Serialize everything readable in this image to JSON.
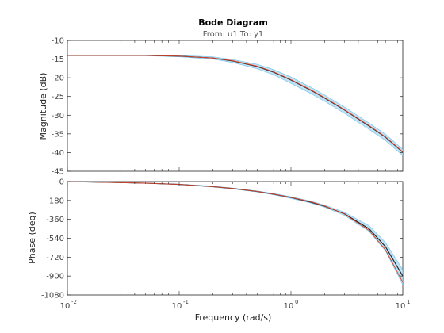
{
  "colors": {
    "band": "#a9d8f0",
    "band_line": "#5bb6e6",
    "estimate": "#1f1f1f",
    "true_response": "#d9442a",
    "axes": "#262626"
  },
  "chart_data": [
    {
      "type": "line",
      "panel": "magnitude",
      "title": "Bode Diagram",
      "subtitle": "From: u1  To: y1",
      "xlabel": "",
      "ylabel": "Magnitude (dB)",
      "xscale": "log",
      "xlim": [
        0.01,
        10
      ],
      "ylim": [
        -45,
        -10
      ],
      "yticks": [
        -10,
        -15,
        -20,
        -25,
        -30,
        -35,
        -40,
        -45
      ],
      "grid": false,
      "x": [
        0.01,
        0.02,
        0.05,
        0.1,
        0.2,
        0.3,
        0.5,
        0.7,
        1,
        1.5,
        2,
        3,
        5,
        7,
        10
      ],
      "series": [
        {
          "role": "estimate",
          "values": [
            -14.0,
            -14.0,
            -14.0,
            -14.2,
            -14.7,
            -15.5,
            -17.0,
            -18.5,
            -20.6,
            -23.3,
            -25.4,
            -28.6,
            -32.9,
            -35.9,
            -39.9
          ]
        },
        {
          "role": "true",
          "values": [
            -14.0,
            -14.0,
            -14.0,
            -14.2,
            -14.7,
            -15.4,
            -16.9,
            -18.4,
            -20.5,
            -23.2,
            -25.3,
            -28.5,
            -32.8,
            -35.8,
            -39.8
          ]
        },
        {
          "role": "band",
          "lower": [
            -14.1,
            -14.1,
            -14.1,
            -14.4,
            -15.0,
            -15.9,
            -17.6,
            -19.2,
            -21.5,
            -24.2,
            -26.3,
            -29.5,
            -33.8,
            -36.8,
            -40.8
          ],
          "upper": [
            -13.9,
            -13.9,
            -13.9,
            -14.0,
            -14.4,
            -15.1,
            -16.4,
            -17.8,
            -19.8,
            -22.5,
            -24.6,
            -27.8,
            -32.1,
            -35.1,
            -39.1
          ]
        }
      ]
    },
    {
      "type": "line",
      "panel": "phase",
      "xlabel": "Frequency  (rad/s)",
      "ylabel": "Phase (deg)",
      "xscale": "log",
      "xlim": [
        0.01,
        10
      ],
      "ylim": [
        -1080,
        0
      ],
      "yticks": [
        0,
        -180,
        -360,
        -540,
        -720,
        -900,
        -1080
      ],
      "xticks": [
        "10",
        "10",
        "10",
        "10"
      ],
      "xtick_exponents": [
        "-2",
        "-1",
        "0",
        "1"
      ],
      "xtick_values": [
        0.01,
        0.1,
        1,
        10
      ],
      "grid": false,
      "x": [
        0.01,
        0.02,
        0.05,
        0.1,
        0.2,
        0.3,
        0.5,
        0.7,
        1,
        1.5,
        2,
        3,
        5,
        7,
        10
      ],
      "series": [
        {
          "role": "estimate",
          "values": [
            -1,
            -6,
            -15,
            -27,
            -48,
            -66,
            -95,
            -120,
            -152,
            -196,
            -235,
            -307,
            -450,
            -620,
            -900
          ]
        },
        {
          "role": "true",
          "values": [
            -1,
            -6,
            -15,
            -27,
            -48,
            -66,
            -95,
            -120,
            -150,
            -192,
            -232,
            -310,
            -465,
            -650,
            -960
          ]
        },
        {
          "role": "band",
          "lower": [
            -2,
            -7,
            -17,
            -30,
            -52,
            -70,
            -100,
            -126,
            -160,
            -205,
            -245,
            -322,
            -475,
            -660,
            -985
          ],
          "upper": [
            0,
            -5,
            -13,
            -24,
            -44,
            -62,
            -90,
            -114,
            -144,
            -186,
            -224,
            -292,
            -420,
            -580,
            -840
          ]
        }
      ]
    }
  ]
}
